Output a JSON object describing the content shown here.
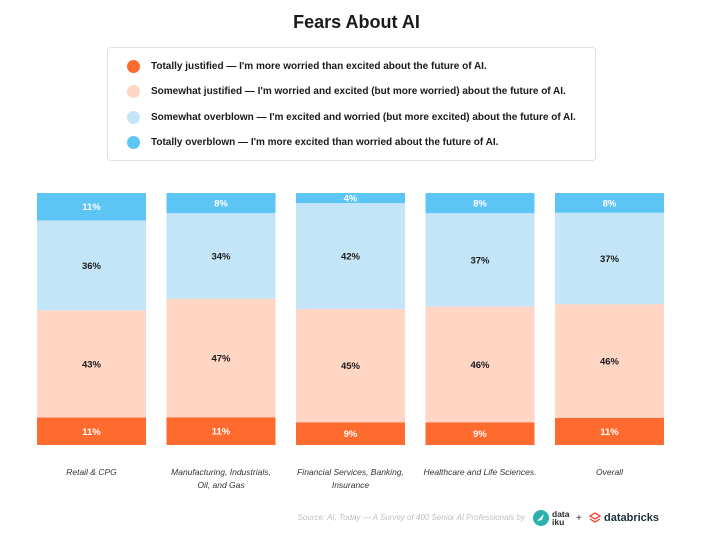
{
  "chart_data": {
    "type": "bar",
    "stacked": true,
    "normalized": true,
    "title": "Fears About AI",
    "categories": [
      "Retail & CPG",
      "Manufacturing, Industrials, Oil, and Gas",
      "Financial Services, Banking, Insurance",
      "Healthcare and Life Sciences.",
      "Overall"
    ],
    "category_lines": [
      [
        "Retail & CPG"
      ],
      [
        "Manufacturing, Industrials,",
        "Oil, and Gas"
      ],
      [
        "Financial Services, Banking,",
        "Insurance"
      ],
      [
        "Healthcare and Life Sciences."
      ],
      [
        "Overall"
      ]
    ],
    "series": [
      {
        "name": "Totally justified — I'm more worried than excited about the future of AI.",
        "color": "#ff6a2f",
        "values": [
          11,
          11,
          9,
          9,
          11
        ],
        "labels": [
          "11%",
          "11%",
          "9%",
          "9%",
          "11%"
        ],
        "label_color": "#ffffff"
      },
      {
        "name": "Somewhat justified — I'm worried and excited (but more worried) about the future of AI.",
        "color": "#ffd5c4",
        "values": [
          43,
          47,
          45,
          46,
          46
        ],
        "labels": [
          "43%",
          "47%",
          "45%",
          "46%",
          "46%"
        ],
        "label_color": "#1a1a1a"
      },
      {
        "name": "Somewhat overblown — I'm excited and worried (but more excited) about the future of AI.",
        "color": "#c3e5f7",
        "values": [
          36,
          34,
          42,
          37,
          37
        ],
        "labels": [
          "36%",
          "34%",
          "42%",
          "37%",
          "37%"
        ],
        "label_color": "#1a1a1a"
      },
      {
        "name": "Totally overblown — I'm more excited than worried about the future of AI.",
        "color": "#5dc5f3",
        "values": [
          11,
          8,
          4,
          8,
          8
        ],
        "labels": [
          "11%",
          "8%",
          "4%",
          "8%",
          "8%"
        ],
        "label_color": "#ffffff"
      }
    ],
    "legend_position": "top",
    "grid": false
  },
  "legend_items": [
    {
      "label": "Totally justified — I'm more worried than excited about the future of AI.",
      "color": "#ff6a2f"
    },
    {
      "label": "Somewhat justified — I'm worried and excited (but more worried) about the future of AI.",
      "color": "#ffd5c4"
    },
    {
      "label": "Somewhat overblown — I'm excited and worried (but more excited) about the future of AI.",
      "color": "#c3e5f7"
    },
    {
      "label": "Totally overblown — I'm more excited than worried about the future of AI.",
      "color": "#5dc5f3"
    }
  ],
  "footer": {
    "source": "Source: AI, Today — A Survey of 400 Senior AI Professionals by",
    "logo1_line1": "data",
    "logo1_line2": "iku",
    "plus": "+",
    "logo2": "databricks"
  }
}
